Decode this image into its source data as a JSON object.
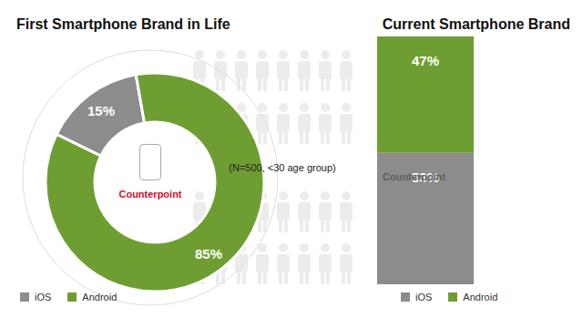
{
  "chart_data": [
    {
      "type": "pie",
      "title": "First Smartphone Brand in Life",
      "categories": [
        "iOS",
        "Android"
      ],
      "values": [
        15,
        85
      ],
      "value_labels": [
        "15%",
        "85%"
      ],
      "colors": [
        "#8c8c8c",
        "#6e9e31"
      ],
      "data_labels": true,
      "legend": "bottom left",
      "annotations": [
        "Counterpoint"
      ]
    },
    {
      "type": "bar",
      "stacked": true,
      "title": "Current Smartphone Brand",
      "subtitle": "(N=500, <30 age group)",
      "categories": [
        null
      ],
      "series": [
        {
          "name": "iOS",
          "color": "#8c8c8c",
          "values": [
            53
          ],
          "value_labels": [
            "53%"
          ]
        },
        {
          "name": "Android",
          "color": "#6e9e31",
          "values": [
            47
          ],
          "value_labels": [
            "47%"
          ]
        }
      ],
      "ylim": [
        0,
        100
      ],
      "tick_labels": false,
      "data_labels": true,
      "legend": "bottom left",
      "annotations": [
        "Counterpoint"
      ]
    }
  ]
}
